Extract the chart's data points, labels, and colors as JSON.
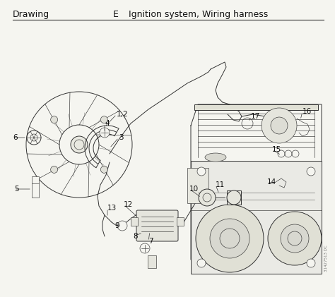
{
  "title_left": "Drawing",
  "title_center": "E",
  "title_right": "Ignition system, Wiring harness",
  "background_color": "#f5f5f0",
  "page_background": "#f5f5f0",
  "line_color": "#333333",
  "text_color": "#111111",
  "title_fontsize": 9.0,
  "label_fontsize": 7.5,
  "fig_width": 4.74,
  "fig_height": 4.21,
  "dpi": 100,
  "watermark_text": "31427513 DC",
  "watermark_fontsize": 4.0
}
